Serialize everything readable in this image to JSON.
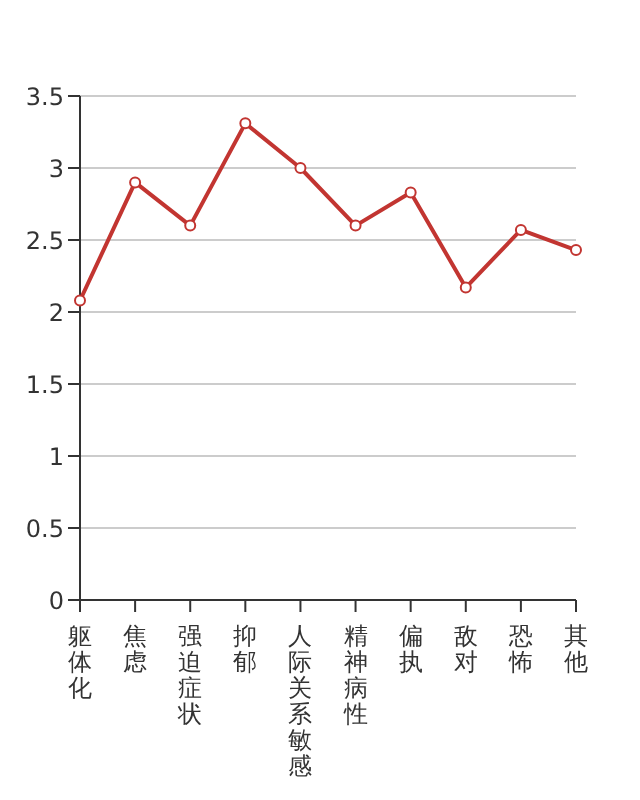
{
  "chart_data": {
    "type": "line",
    "categories": [
      "躯体化",
      "焦虑",
      "强迫症状",
      "抑郁",
      "人际关系敏感",
      "精神病性",
      "偏执",
      "敌对",
      "恐怖",
      "其他"
    ],
    "series": [
      {
        "color": "#c23531",
        "values": [
          2.08,
          2.9,
          2.6,
          3.31,
          3.0,
          2.6,
          2.83,
          2.17,
          2.57,
          2.43
        ]
      }
    ],
    "ylim": [
      0,
      3.5
    ],
    "yticks": [
      0,
      0.5,
      1,
      1.5,
      2,
      2.5,
      3,
      3.5
    ],
    "grid": "y",
    "marker": "circle",
    "line_style": "solid"
  }
}
